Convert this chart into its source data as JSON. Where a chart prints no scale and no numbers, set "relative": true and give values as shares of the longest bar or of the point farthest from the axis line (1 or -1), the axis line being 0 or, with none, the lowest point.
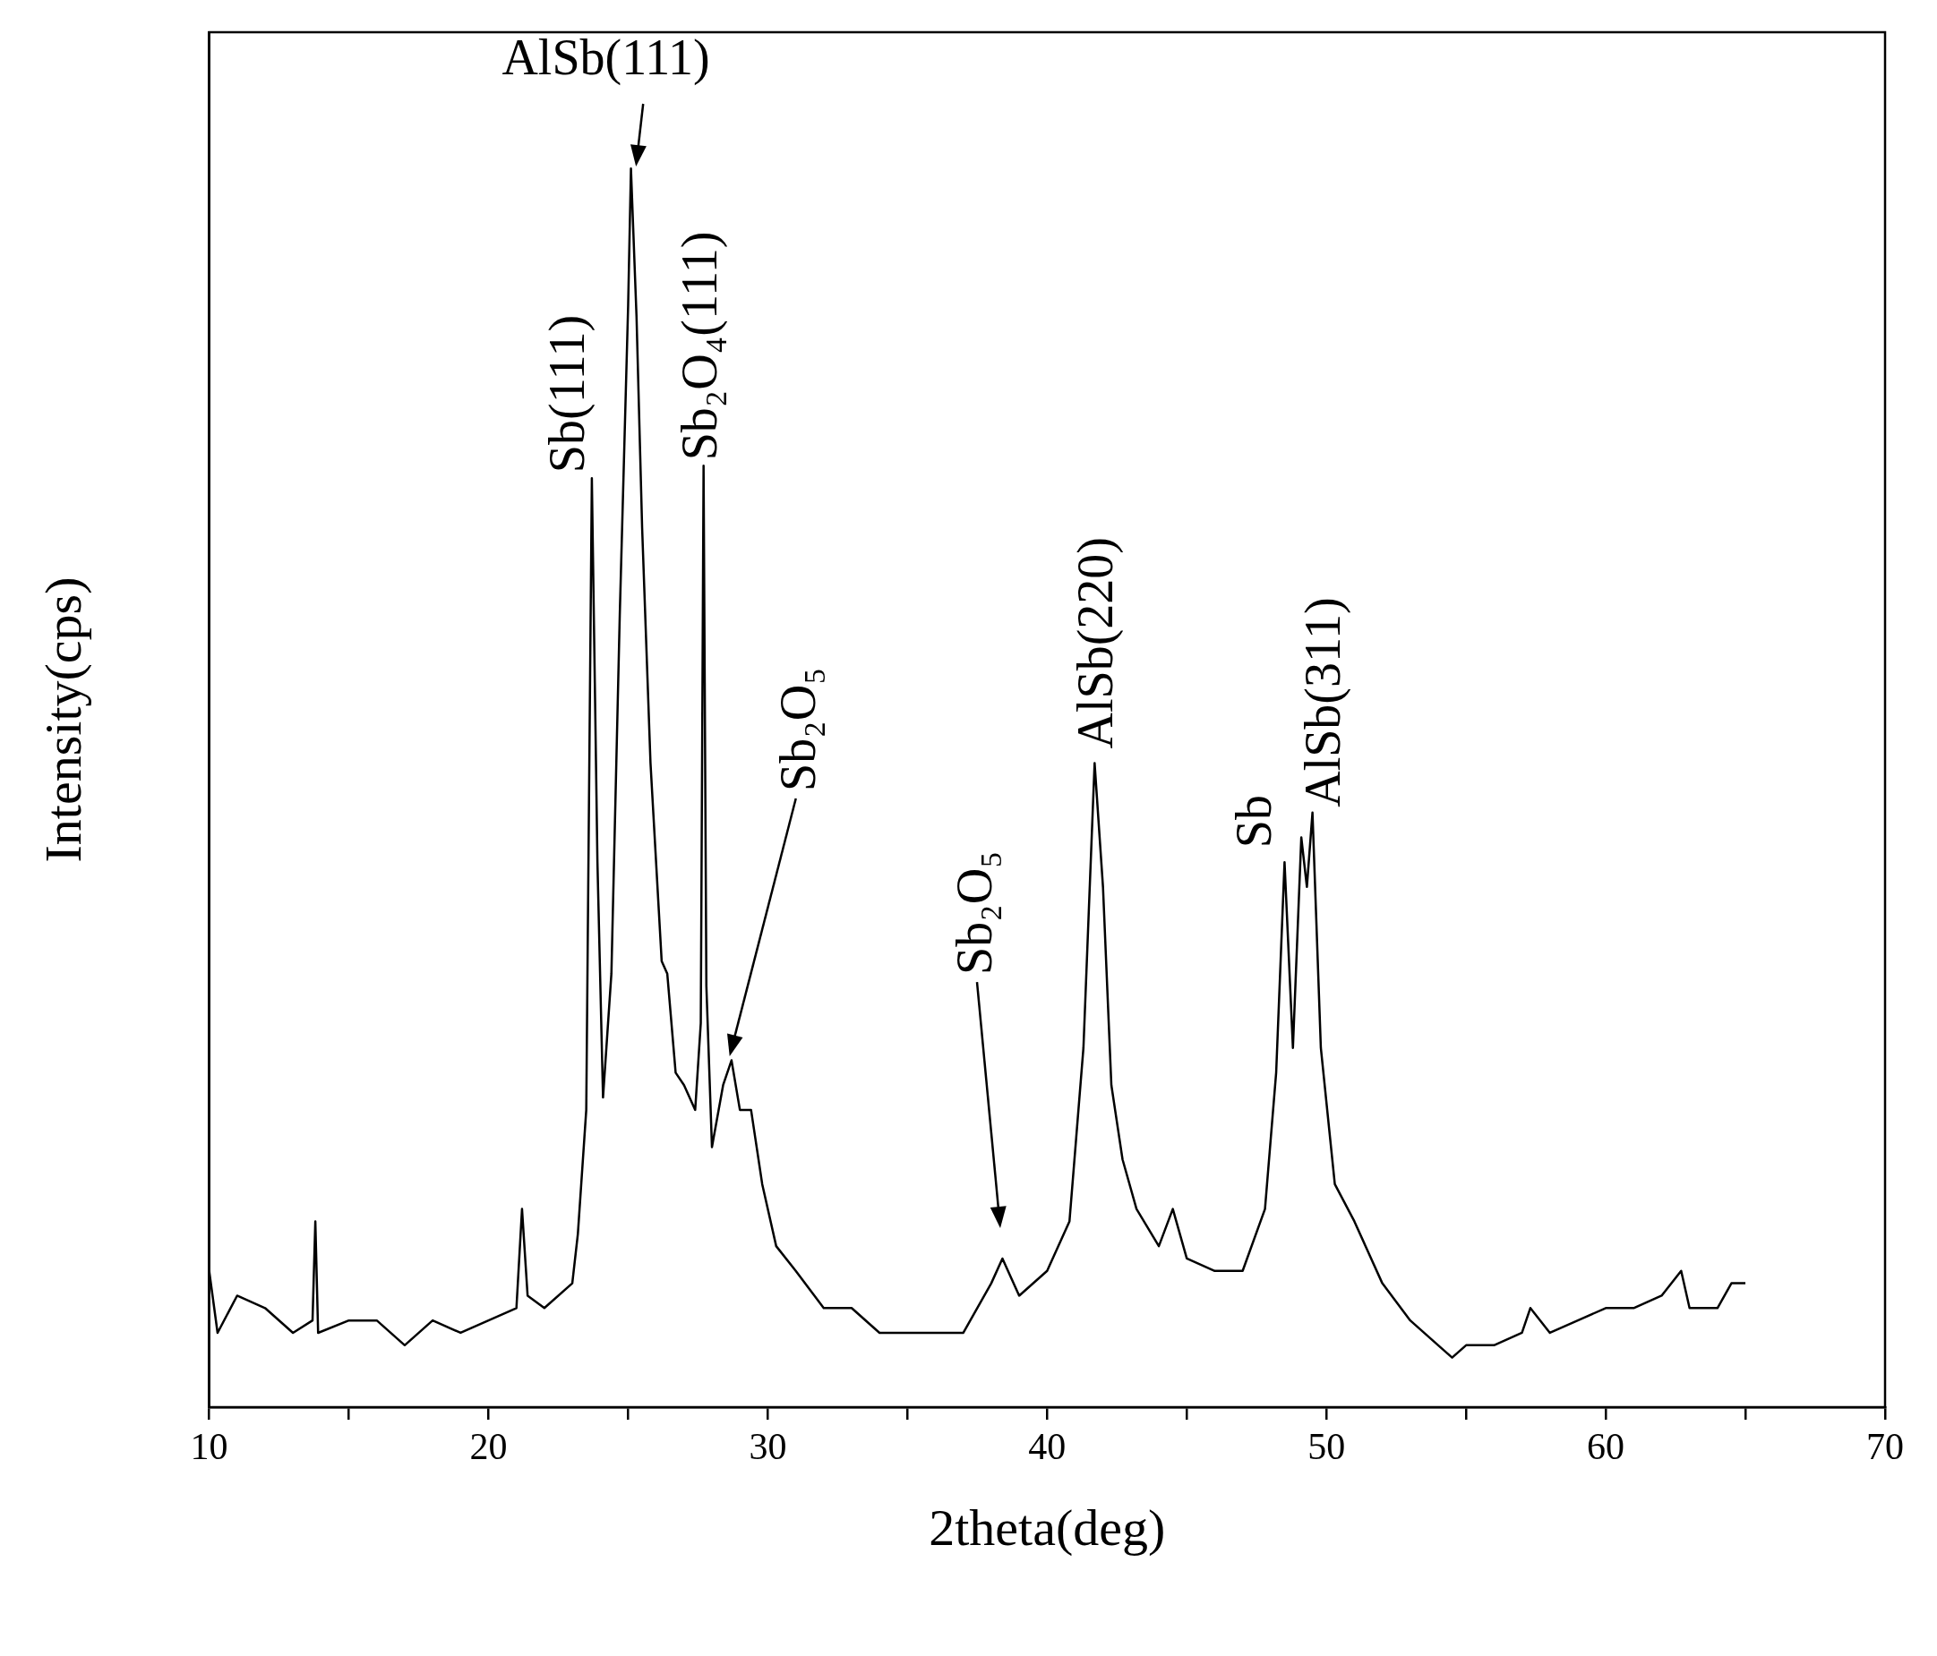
{
  "chart_data": {
    "type": "line",
    "relative": true,
    "xlabel": "2theta(deg)",
    "ylabel": "Intensity(cps)",
    "xlim": [
      10,
      70
    ],
    "xticks": [
      10,
      {
        "value": 15,
        "label": null
      },
      20,
      {
        "value": 25,
        "label": null
      },
      30,
      {
        "value": 35,
        "label": null
      },
      40,
      {
        "value": 45,
        "label": null
      },
      50,
      {
        "value": 55,
        "label": null
      },
      60,
      {
        "value": 65,
        "label": null
      },
      70
    ],
    "grid": false,
    "legend": false,
    "marker": "none",
    "line_style": "solid",
    "series": [
      {
        "color": "#000000",
        "x": [
          10.0,
          10.3,
          11,
          12,
          13,
          13.7,
          13.8,
          13.9,
          15,
          16,
          17,
          18,
          19,
          20,
          21,
          21.2,
          21.4,
          22,
          23,
          23.2,
          23.5,
          23.7,
          23.9,
          24.1,
          24.4,
          24.7,
          25.0,
          25.1,
          25.3,
          25.5,
          25.8,
          26.2,
          26.4,
          26.7,
          27.0,
          27.4,
          27.6,
          27.7,
          27.8,
          28.0,
          28.4,
          28.7,
          29.0,
          29.4,
          29.8,
          30.3,
          31,
          32,
          33,
          34,
          35,
          36,
          37,
          38,
          38.4,
          39,
          40,
          40.8,
          41.3,
          41.7,
          42.0,
          42.3,
          42.7,
          43.2,
          44,
          44.5,
          45,
          46,
          47,
          47.8,
          48.2,
          48.5,
          48.8,
          49.1,
          49.3,
          49.5,
          49.8,
          50.3,
          51,
          52,
          53,
          54,
          54.5,
          55,
          56,
          57,
          57.3,
          58,
          59,
          60,
          61,
          62,
          62.7,
          63,
          64,
          64.5,
          65
        ],
        "values": [
          0.11,
          0.06,
          0.09,
          0.08,
          0.06,
          0.07,
          0.15,
          0.06,
          0.07,
          0.07,
          0.05,
          0.07,
          0.06,
          0.07,
          0.08,
          0.16,
          0.09,
          0.08,
          0.1,
          0.14,
          0.24,
          0.75,
          0.44,
          0.25,
          0.35,
          0.64,
          0.89,
          1.0,
          0.88,
          0.71,
          0.52,
          0.36,
          0.35,
          0.27,
          0.26,
          0.24,
          0.31,
          0.76,
          0.34,
          0.21,
          0.26,
          0.28,
          0.24,
          0.24,
          0.18,
          0.13,
          0.11,
          0.08,
          0.08,
          0.06,
          0.06,
          0.06,
          0.06,
          0.1,
          0.12,
          0.09,
          0.11,
          0.15,
          0.29,
          0.52,
          0.42,
          0.26,
          0.2,
          0.16,
          0.13,
          0.16,
          0.12,
          0.11,
          0.11,
          0.16,
          0.27,
          0.44,
          0.29,
          0.46,
          0.42,
          0.48,
          0.29,
          0.18,
          0.15,
          0.1,
          0.07,
          0.05,
          0.04,
          0.05,
          0.05,
          0.06,
          0.08,
          0.06,
          0.07,
          0.08,
          0.08,
          0.09,
          0.11,
          0.08,
          0.08,
          0.1,
          0.1
        ]
      }
    ],
    "annotations": [
      {
        "text": "AlSb(111)",
        "x": 25.1,
        "y": 1.0
      },
      {
        "text": "Sb(111)",
        "x": 23.7,
        "y": 0.75
      },
      {
        "text": "Sb₂O₄(111)",
        "x": 27.7,
        "y": 0.76
      },
      "Sb₂O₅",
      "Sb₂O₅",
      {
        "text": "AlSb(220)",
        "x": 41.7,
        "y": 0.52
      },
      {
        "text": "Sb",
        "x": 48.5,
        "y": 0.44
      },
      {
        "text": "AlSb(311)",
        "x": 49.5,
        "y": 0.48
      }
    ]
  }
}
